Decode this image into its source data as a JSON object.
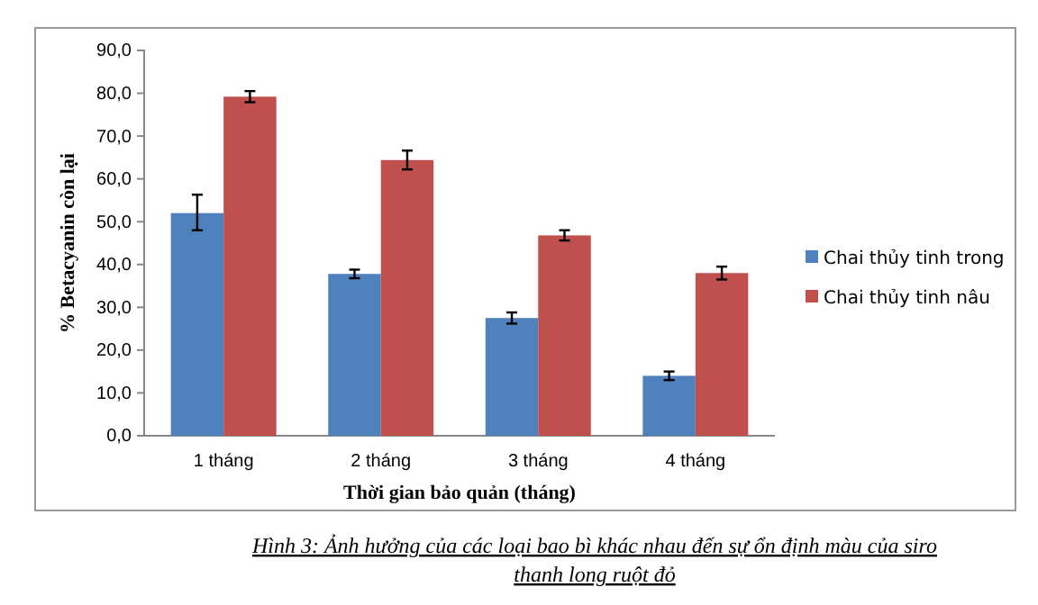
{
  "chart_data": {
    "type": "bar",
    "xlabel": "Thời gian bảo quản (tháng)",
    "ylabel": "% Betacyanin còn lại",
    "categories": [
      "1 tháng",
      "2 tháng",
      "3 tháng",
      "4 tháng"
    ],
    "series": [
      {
        "name": "Chai thủy tinh trong",
        "color": "#4f81bd",
        "values": [
          52,
          37.8,
          27.5,
          14
        ],
        "errors": [
          [
            48,
            56.3
          ],
          1,
          1.3,
          1
        ]
      },
      {
        "name": "Chai thủy tinh nâu",
        "color": "#c0504d",
        "values": [
          79.2,
          64.4,
          46.8,
          38
        ],
        "errors": [
          1.3,
          2.2,
          1.2,
          1.5
        ]
      }
    ],
    "ylim": [
      0,
      90
    ],
    "yticks": [
      {
        "value": 0,
        "label": "0,0"
      },
      {
        "value": 10,
        "label": "10,0"
      },
      {
        "value": 20,
        "label": "20,0"
      },
      {
        "value": 30,
        "label": "30,0"
      },
      {
        "value": 40,
        "label": "40,0"
      },
      {
        "value": 50,
        "label": "50,0"
      },
      {
        "value": 60,
        "label": "60,0"
      },
      {
        "value": 70,
        "label": "70,0"
      },
      {
        "value": 80,
        "label": "80,0"
      },
      {
        "value": 90,
        "label": "90,0"
      }
    ],
    "grid": false,
    "legend": "right",
    "annotations": [
      "Hình 3: Ảnh hưởng của các loại bao bì khác nhau đến sự ổn định màu của siro thanh long ruột đỏ"
    ]
  }
}
